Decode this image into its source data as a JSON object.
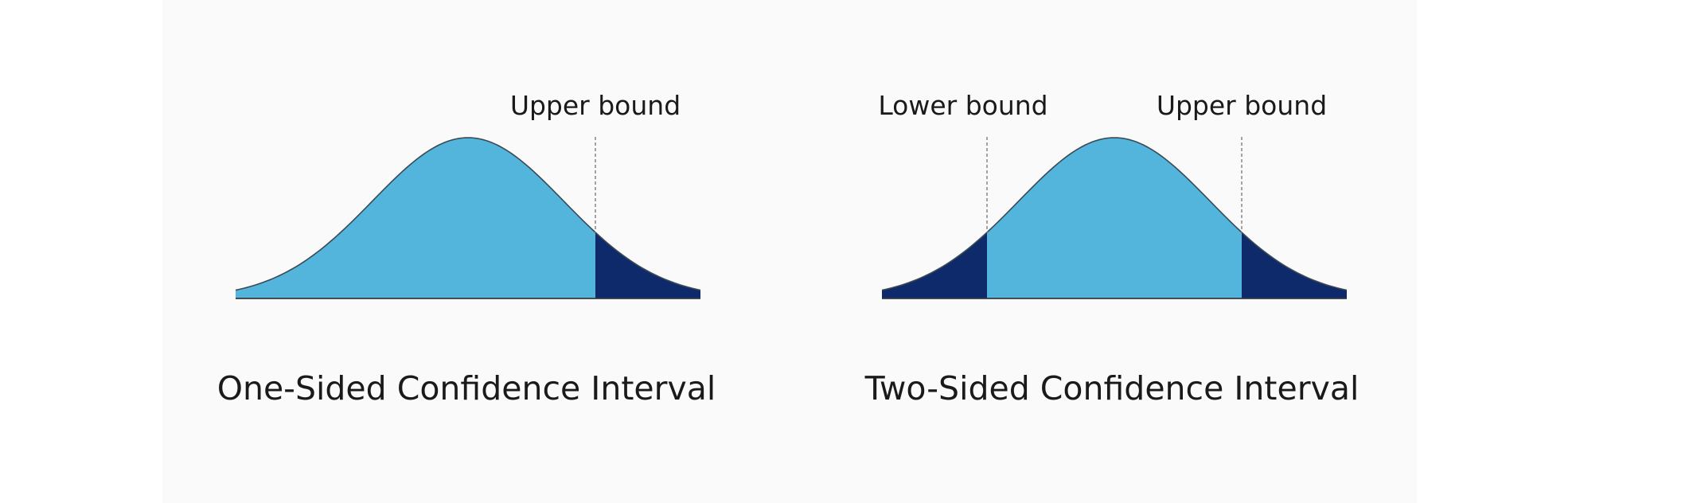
{
  "figure": {
    "colors": {
      "background": "#fafafb",
      "interval_fill": "#53b5db",
      "tail_fill": "#0f2a6b"
    },
    "diagrams": [
      {
        "id": "one-sided",
        "bound_labels": {
          "upper": "Upper bound"
        },
        "caption": "One-Sided Confidence Interval"
      },
      {
        "id": "two-sided",
        "bound_labels": {
          "lower": "Lower bound",
          "upper": "Upper bound"
        },
        "caption": "Two-Sided Confidence Interval"
      }
    ]
  }
}
